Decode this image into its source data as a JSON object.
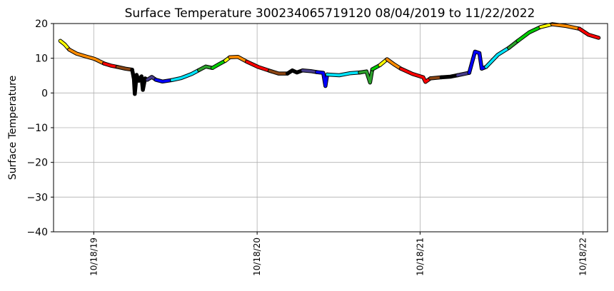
{
  "chart_data": {
    "type": "scatter",
    "title": "Surface Temperature 300234065719120  08/04/2019 to 11/22/2022",
    "xlabel": "",
    "ylabel": "Surface Temperature",
    "xlim": [
      "2019-07-20",
      "2022-12-12"
    ],
    "ylim": [
      -40,
      20
    ],
    "grid": true,
    "legend": "none",
    "yticks": [
      -40,
      -30,
      -20,
      -10,
      0,
      10,
      20
    ],
    "xticks": [
      {
        "date": "2019-10-18",
        "label": "10/18/19"
      },
      {
        "date": "2020-10-18",
        "label": "10/18/20"
      },
      {
        "date": "2021-10-18",
        "label": "10/18/21"
      },
      {
        "date": "2022-10-18",
        "label": "10/18/22"
      }
    ],
    "colors": [
      "#ffff00",
      "#ff8c00",
      "#ff0000",
      "#8b4513",
      "#000000",
      "#483d8b",
      "#0000ff",
      "#00e5ff",
      "#00cc00",
      "#2ca02c"
    ],
    "series": [
      {
        "color": "#ffff00",
        "points": [
          [
            "2019-08-04",
            15.0
          ],
          [
            "2019-08-14",
            14.0
          ],
          [
            "2019-08-24",
            12.5
          ]
        ]
      },
      {
        "color": "#ff8c00",
        "points": [
          [
            "2019-08-24",
            12.5
          ],
          [
            "2019-09-10",
            11.3
          ],
          [
            "2019-10-01",
            10.5
          ],
          [
            "2019-10-20",
            9.8
          ],
          [
            "2019-11-10",
            8.5
          ]
        ]
      },
      {
        "color": "#ff0000",
        "points": [
          [
            "2019-11-10",
            8.5
          ],
          [
            "2019-11-25",
            7.9
          ],
          [
            "2019-12-10",
            7.5
          ]
        ]
      },
      {
        "color": "#8b4513",
        "points": [
          [
            "2019-12-10",
            7.5
          ],
          [
            "2019-12-28",
            7.0
          ],
          [
            "2020-01-12",
            6.7
          ]
        ]
      },
      {
        "color": "#000000",
        "points": [
          [
            "2020-01-12",
            6.7
          ],
          [
            "2020-01-16",
            4.0
          ],
          [
            "2020-01-18",
            -0.3
          ],
          [
            "2020-01-22",
            5.2
          ],
          [
            "2020-01-27",
            3.5
          ],
          [
            "2020-02-02",
            4.8
          ],
          [
            "2020-02-05",
            0.9
          ],
          [
            "2020-02-10",
            4.2
          ],
          [
            "2020-02-15",
            3.8
          ]
        ]
      },
      {
        "color": "#483d8b",
        "points": [
          [
            "2020-02-15",
            3.8
          ],
          [
            "2020-02-25",
            4.6
          ],
          [
            "2020-03-05",
            3.8
          ]
        ]
      },
      {
        "color": "#0000ff",
        "points": [
          [
            "2020-03-05",
            3.8
          ],
          [
            "2020-03-20",
            3.3
          ],
          [
            "2020-04-10",
            3.7
          ]
        ]
      },
      {
        "color": "#00e5ff",
        "points": [
          [
            "2020-04-10",
            3.7
          ],
          [
            "2020-05-01",
            4.3
          ],
          [
            "2020-05-25",
            5.5
          ],
          [
            "2020-06-10",
            6.6
          ]
        ]
      },
      {
        "color": "#2ca02c",
        "points": [
          [
            "2020-06-10",
            6.6
          ],
          [
            "2020-06-25",
            7.6
          ],
          [
            "2020-07-10",
            7.2
          ]
        ]
      },
      {
        "color": "#00cc00",
        "points": [
          [
            "2020-07-10",
            7.2
          ],
          [
            "2020-07-25",
            8.3
          ],
          [
            "2020-08-08",
            9.3
          ]
        ]
      },
      {
        "color": "#ffff00",
        "points": [
          [
            "2020-08-08",
            9.3
          ],
          [
            "2020-08-18",
            10.3
          ]
        ]
      },
      {
        "color": "#ff8c00",
        "points": [
          [
            "2020-08-18",
            10.3
          ],
          [
            "2020-09-05",
            10.4
          ],
          [
            "2020-09-25",
            9.0
          ]
        ]
      },
      {
        "color": "#ff0000",
        "points": [
          [
            "2020-09-25",
            9.0
          ],
          [
            "2020-10-20",
            7.5
          ],
          [
            "2020-11-15",
            6.4
          ]
        ]
      },
      {
        "color": "#8b4513",
        "points": [
          [
            "2020-11-15",
            6.4
          ],
          [
            "2020-12-05",
            5.6
          ],
          [
            "2020-12-25",
            5.6
          ]
        ]
      },
      {
        "color": "#000000",
        "points": [
          [
            "2020-12-25",
            5.6
          ],
          [
            "2021-01-05",
            6.5
          ],
          [
            "2021-01-15",
            5.9
          ],
          [
            "2021-01-28",
            6.5
          ]
        ]
      },
      {
        "color": "#483d8b",
        "points": [
          [
            "2021-01-28",
            6.5
          ],
          [
            "2021-02-15",
            6.3
          ],
          [
            "2021-03-01",
            6.0
          ]
        ]
      },
      {
        "color": "#0000ff",
        "points": [
          [
            "2021-03-01",
            6.0
          ],
          [
            "2021-03-15",
            5.8
          ],
          [
            "2021-03-20",
            2.0
          ],
          [
            "2021-03-24",
            5.3
          ]
        ]
      },
      {
        "color": "#00e5ff",
        "points": [
          [
            "2021-03-24",
            5.3
          ],
          [
            "2021-04-20",
            5.1
          ],
          [
            "2021-05-15",
            5.7
          ],
          [
            "2021-06-05",
            5.9
          ]
        ]
      },
      {
        "color": "#2ca02c",
        "points": [
          [
            "2021-06-05",
            5.9
          ],
          [
            "2021-06-20",
            6.2
          ],
          [
            "2021-06-28",
            3.0
          ],
          [
            "2021-07-03",
            6.8
          ]
        ]
      },
      {
        "color": "#00cc00",
        "points": [
          [
            "2021-07-03",
            6.8
          ],
          [
            "2021-07-20",
            8.0
          ]
        ]
      },
      {
        "color": "#ffff00",
        "points": [
          [
            "2021-07-20",
            8.0
          ],
          [
            "2021-08-05",
            9.7
          ]
        ]
      },
      {
        "color": "#ff8c00",
        "points": [
          [
            "2021-08-05",
            9.7
          ],
          [
            "2021-08-20",
            8.3
          ],
          [
            "2021-09-05",
            7.0
          ]
        ]
      },
      {
        "color": "#ff0000",
        "points": [
          [
            "2021-09-05",
            7.0
          ],
          [
            "2021-10-01",
            5.5
          ],
          [
            "2021-10-25",
            4.5
          ],
          [
            "2021-10-30",
            3.2
          ],
          [
            "2021-11-10",
            4.2
          ]
        ]
      },
      {
        "color": "#8b4513",
        "points": [
          [
            "2021-11-10",
            4.2
          ],
          [
            "2021-12-05",
            4.5
          ]
        ]
      },
      {
        "color": "#000000",
        "points": [
          [
            "2021-12-05",
            4.5
          ],
          [
            "2021-12-25",
            4.7
          ],
          [
            "2022-01-10",
            5.1
          ]
        ]
      },
      {
        "color": "#483d8b",
        "points": [
          [
            "2022-01-10",
            5.1
          ],
          [
            "2022-02-05",
            5.8
          ]
        ]
      },
      {
        "color": "#0000ff",
        "points": [
          [
            "2022-02-05",
            5.8
          ],
          [
            "2022-02-18",
            11.9
          ],
          [
            "2022-02-28",
            11.5
          ],
          [
            "2022-03-05",
            7.0
          ],
          [
            "2022-03-15",
            7.5
          ]
        ]
      },
      {
        "color": "#00e5ff",
        "points": [
          [
            "2022-03-15",
            7.5
          ],
          [
            "2022-04-10",
            11.0
          ],
          [
            "2022-05-05",
            13.0
          ]
        ]
      },
      {
        "color": "#2ca02c",
        "points": [
          [
            "2022-05-05",
            13.0
          ],
          [
            "2022-05-25",
            15.0
          ]
        ]
      },
      {
        "color": "#00cc00",
        "points": [
          [
            "2022-05-25",
            15.0
          ],
          [
            "2022-06-20",
            17.5
          ],
          [
            "2022-07-15",
            19.0
          ]
        ]
      },
      {
        "color": "#ffff00",
        "points": [
          [
            "2022-07-15",
            19.0
          ],
          [
            "2022-08-10",
            19.8
          ]
        ]
      },
      {
        "color": "#ff8c00",
        "points": [
          [
            "2022-08-10",
            19.8
          ],
          [
            "2022-09-10",
            19.3
          ],
          [
            "2022-10-10",
            18.5
          ]
        ]
      },
      {
        "color": "#ff0000",
        "points": [
          [
            "2022-10-10",
            18.5
          ],
          [
            "2022-10-30",
            16.8
          ],
          [
            "2022-11-22",
            15.9
          ]
        ]
      }
    ]
  }
}
